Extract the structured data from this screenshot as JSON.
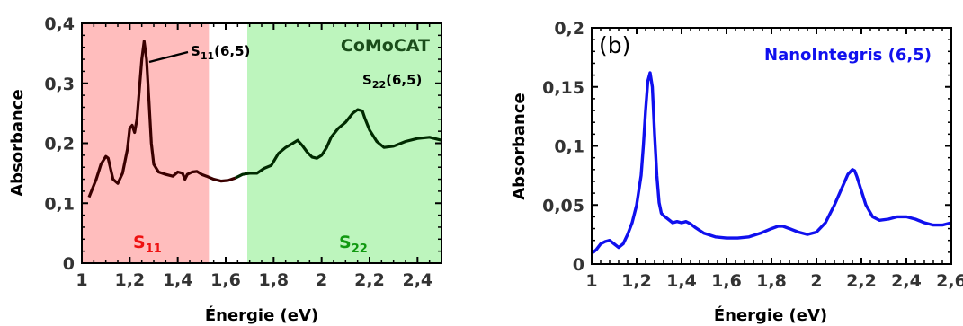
{
  "chart_data": [
    {
      "type": "line",
      "title": "",
      "xlabel": "Énergie (eV)",
      "ylabel": "Absorbance",
      "xlim": [
        1.0,
        2.5
      ],
      "ylim": [
        0.0,
        0.4
      ],
      "xticks": [
        "1",
        "1,2",
        "1,4",
        "1,6",
        "1,8",
        "2",
        "2,2",
        "2,4"
      ],
      "yticks": [
        "0",
        "0,1",
        "0,2",
        "0,3",
        "0,4"
      ],
      "grid": false,
      "colors": {
        "line_s11": "#3a0000",
        "line_s22": "#002a00",
        "region_s11": "#ffbdbd",
        "region_s22": "#bdf5bd",
        "label_s11": "#ee1111",
        "label_s22": "#119911"
      },
      "regions": [
        {
          "name": "S11",
          "sub": "11",
          "x": [
            1.0,
            1.53
          ]
        },
        {
          "name": "S22",
          "sub": "22",
          "x": [
            1.69,
            2.5
          ]
        }
      ],
      "annotations": [
        {
          "text": "S",
          "sub": "11",
          "suffix": "(6,5)",
          "x": 1.27,
          "y": 0.37
        },
        {
          "text": "S",
          "sub": "22",
          "suffix": "(6,5)",
          "x": 2.17,
          "y": 0.255
        },
        {
          "text": "CoMoCAT"
        }
      ],
      "series": [
        {
          "x": [
            1.03,
            1.06,
            1.08,
            1.1,
            1.11,
            1.13,
            1.15,
            1.17,
            1.19,
            1.2,
            1.21,
            1.22,
            1.23,
            1.24,
            1.25,
            1.26,
            1.27,
            1.28,
            1.29,
            1.3,
            1.32,
            1.35,
            1.38,
            1.4,
            1.42,
            1.43,
            1.44,
            1.46,
            1.48,
            1.5,
            1.52,
            1.55,
            1.58,
            1.61,
            1.64,
            1.67,
            1.7,
            1.73,
            1.76,
            1.79,
            1.82,
            1.85,
            1.88,
            1.9,
            1.92,
            1.94,
            1.96,
            1.98,
            2.0,
            2.02,
            2.04,
            2.07,
            2.1,
            2.13,
            2.15,
            2.17,
            2.18,
            2.2,
            2.23,
            2.26,
            2.3,
            2.35,
            2.4,
            2.45,
            2.5
          ],
          "y": [
            0.11,
            0.14,
            0.165,
            0.178,
            0.175,
            0.14,
            0.133,
            0.15,
            0.19,
            0.225,
            0.23,
            0.218,
            0.24,
            0.29,
            0.34,
            0.37,
            0.34,
            0.27,
            0.2,
            0.165,
            0.152,
            0.148,
            0.145,
            0.152,
            0.15,
            0.14,
            0.148,
            0.152,
            0.153,
            0.148,
            0.145,
            0.14,
            0.137,
            0.138,
            0.142,
            0.148,
            0.15,
            0.15,
            0.158,
            0.163,
            0.183,
            0.193,
            0.2,
            0.205,
            0.196,
            0.185,
            0.177,
            0.175,
            0.18,
            0.192,
            0.21,
            0.225,
            0.235,
            0.25,
            0.256,
            0.254,
            0.242,
            0.222,
            0.203,
            0.193,
            0.195,
            0.203,
            0.208,
            0.21,
            0.205
          ]
        }
      ]
    },
    {
      "type": "line",
      "title": "",
      "xlabel": "Énergie (eV)",
      "ylabel": "Absorbance",
      "xlim": [
        1.0,
        2.6
      ],
      "ylim": [
        0.0,
        0.2
      ],
      "xticks": [
        "1",
        "1,2",
        "1,4",
        "1,6",
        "1,8",
        "2",
        "2,2",
        "2,4",
        "2,6"
      ],
      "yticks": [
        "0",
        "0,05",
        "0,1",
        "0,15",
        "0,2"
      ],
      "grid": false,
      "panel_label": "(b)",
      "legend": "NanoIntegris (6,5)",
      "colors": {
        "line": "#1010ee",
        "legend_text": "#1010ee"
      },
      "series": [
        {
          "name": "NanoIntegris (6,5)",
          "x": [
            1.0,
            1.02,
            1.04,
            1.06,
            1.08,
            1.1,
            1.12,
            1.14,
            1.16,
            1.18,
            1.2,
            1.22,
            1.23,
            1.24,
            1.25,
            1.26,
            1.27,
            1.28,
            1.29,
            1.3,
            1.31,
            1.32,
            1.34,
            1.36,
            1.38,
            1.4,
            1.42,
            1.44,
            1.46,
            1.5,
            1.55,
            1.6,
            1.65,
            1.7,
            1.75,
            1.8,
            1.83,
            1.85,
            1.88,
            1.92,
            1.96,
            2.0,
            2.04,
            2.08,
            2.11,
            2.14,
            2.16,
            2.17,
            2.18,
            2.2,
            2.22,
            2.25,
            2.28,
            2.32,
            2.36,
            2.4,
            2.44,
            2.48,
            2.52,
            2.56,
            2.6
          ],
          "y": [
            0.009,
            0.012,
            0.017,
            0.019,
            0.02,
            0.017,
            0.014,
            0.017,
            0.025,
            0.035,
            0.05,
            0.075,
            0.1,
            0.13,
            0.155,
            0.162,
            0.15,
            0.11,
            0.075,
            0.052,
            0.043,
            0.041,
            0.038,
            0.035,
            0.036,
            0.035,
            0.036,
            0.034,
            0.031,
            0.026,
            0.023,
            0.022,
            0.022,
            0.023,
            0.026,
            0.03,
            0.032,
            0.032,
            0.03,
            0.027,
            0.025,
            0.027,
            0.035,
            0.05,
            0.063,
            0.076,
            0.08,
            0.079,
            0.074,
            0.062,
            0.05,
            0.04,
            0.037,
            0.038,
            0.04,
            0.04,
            0.038,
            0.035,
            0.033,
            0.033,
            0.035
          ]
        }
      ]
    }
  ]
}
